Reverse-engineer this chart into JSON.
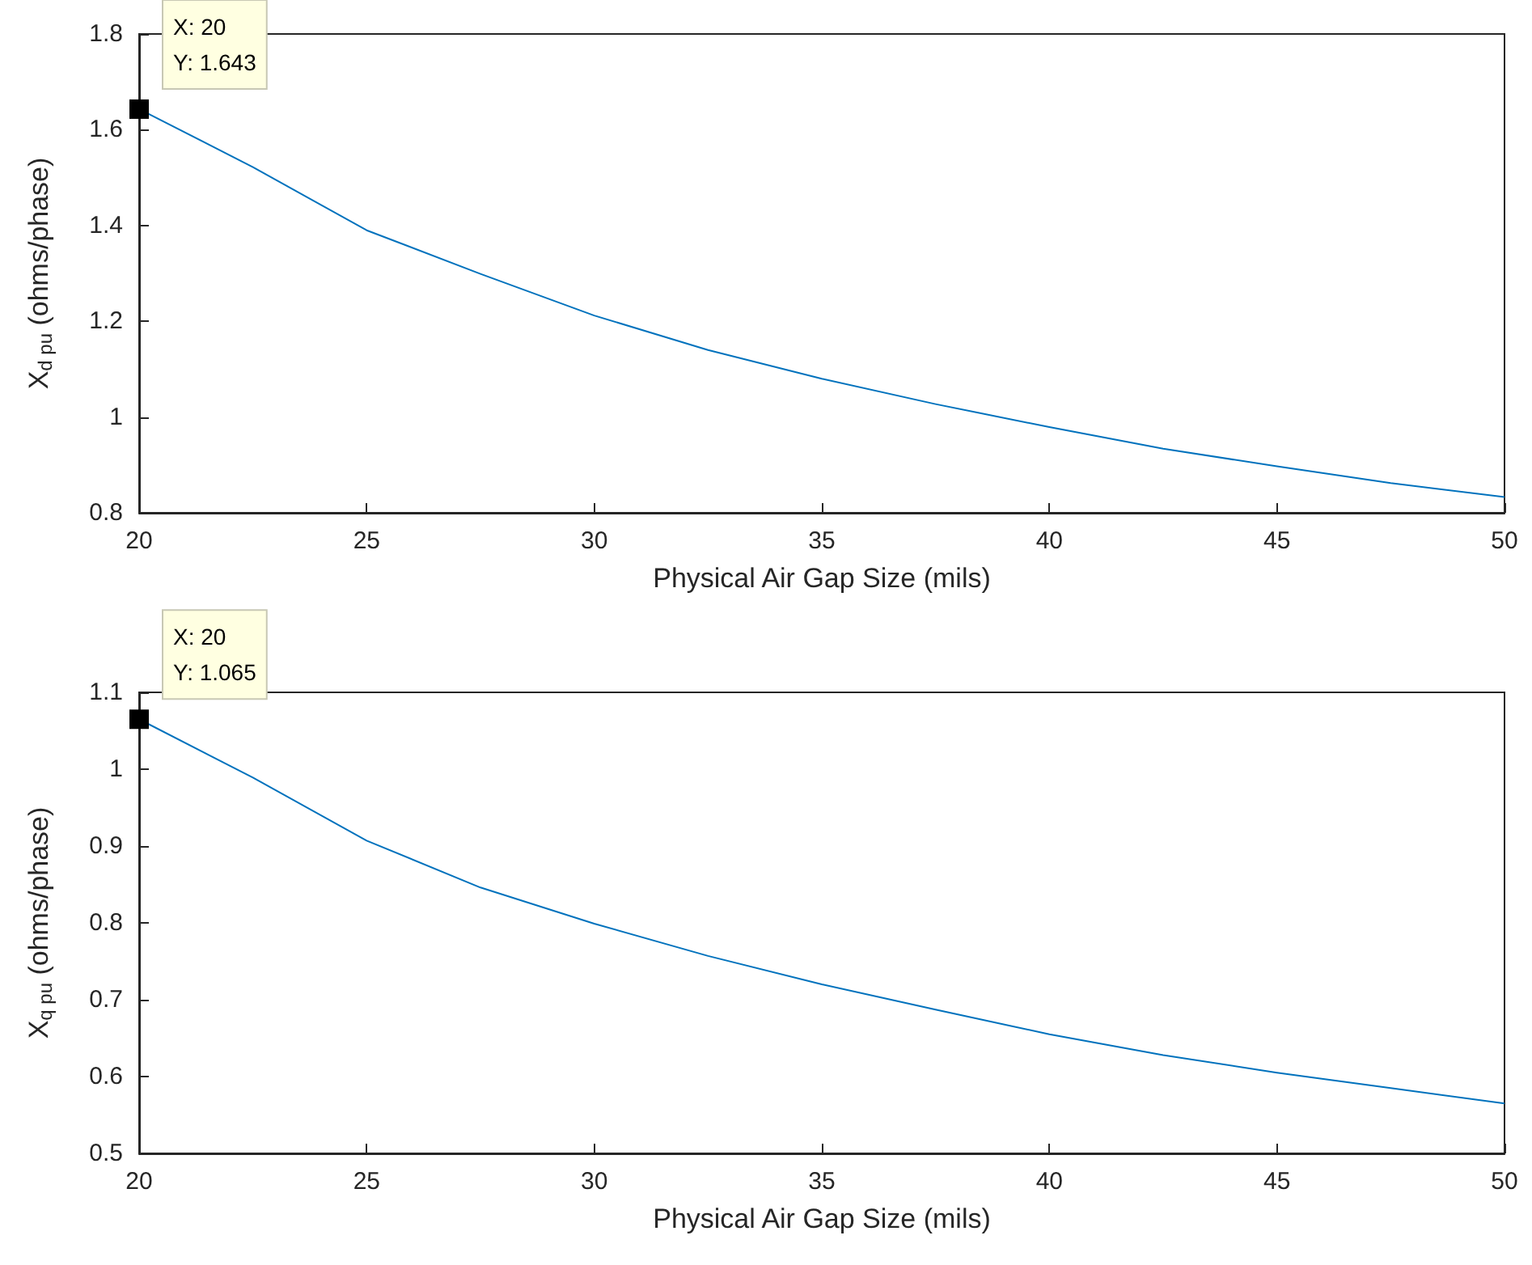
{
  "chart_data": [
    {
      "type": "line",
      "xlabel": "Physical Air Gap Size (mils)",
      "ylabel": "X$_{d pu}$ (ohms/phase)",
      "x": [
        20,
        22.5,
        25,
        27.5,
        30,
        32.5,
        35,
        37.5,
        40,
        42.5,
        45,
        47.5,
        50
      ],
      "series": [
        {
          "color": "#0072bd",
          "values": [
            1.643,
            1.522,
            1.39,
            1.299,
            1.212,
            1.14,
            1.08,
            1.027,
            0.979,
            0.934,
            0.897,
            0.862,
            0.833
          ]
        }
      ],
      "xlim": [
        20,
        50
      ],
      "xticks": [
        20,
        25,
        30,
        35,
        40,
        45,
        50
      ],
      "ylim": [
        0.8,
        1.8
      ],
      "yticks": [
        0.8,
        1,
        1.2,
        1.4,
        1.6,
        1.8
      ],
      "grid": false,
      "marker": "none",
      "annotations": [
        {
          "text": "X: 20\nY: 1.643",
          "x": 20,
          "y": 1.643
        }
      ]
    },
    {
      "type": "line",
      "xlabel": "Physical Air Gap Size (mils)",
      "ylabel": "X$_{q pu}$ (ohms/phase)",
      "x": [
        20,
        22.5,
        25,
        27.5,
        30,
        32.5,
        35,
        37.5,
        40,
        42.5,
        45,
        47.5,
        50
      ],
      "series": [
        {
          "color": "#0072bd",
          "values": [
            1.065,
            0.989,
            0.907,
            0.846,
            0.799,
            0.757,
            0.72,
            0.687,
            0.655,
            0.628,
            0.605,
            0.585,
            0.565
          ]
        }
      ],
      "xlim": [
        20,
        50
      ],
      "xticks": [
        20,
        25,
        30,
        35,
        40,
        45,
        50
      ],
      "ylim": [
        0.5,
        1.1
      ],
      "yticks": [
        0.5,
        0.6,
        0.7,
        0.8,
        0.9,
        1,
        1.1
      ],
      "grid": false,
      "marker": "none",
      "annotations": [
        {
          "text": "X: 20\nY: 1.065",
          "x": 20,
          "y": 1.065
        }
      ]
    }
  ]
}
